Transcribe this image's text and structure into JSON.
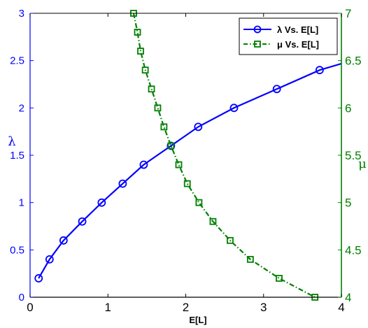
{
  "chart_data": {
    "type": "line",
    "xlabel": "E[L]",
    "ylabel_left": "λ",
    "ylabel_right": "μ",
    "xlim": [
      0,
      4
    ],
    "ylim_left": [
      0,
      3
    ],
    "ylim_right": [
      4,
      7
    ],
    "xticks": [
      "0",
      "1",
      "2",
      "3",
      "4"
    ],
    "yticks_left": [
      "0",
      "0.5",
      "1",
      "1.5",
      "2",
      "2.5",
      "3"
    ],
    "yticks_right": [
      "4",
      "4.5",
      "5",
      "5.5",
      "6",
      "6.5",
      "7"
    ],
    "legend_position": "top-right",
    "series": [
      {
        "name": "λ Vs. E[L]",
        "axis": "left",
        "color": "#0000ff",
        "marker": "circle",
        "line_style": "solid",
        "x": [
          0.11,
          0.25,
          0.43,
          0.67,
          0.92,
          1.19,
          1.46,
          1.81,
          2.16,
          2.62,
          3.17,
          3.72,
          4.13
        ],
        "y": [
          0.2,
          0.4,
          0.6,
          0.8,
          1.0,
          1.2,
          1.4,
          1.6,
          1.8,
          2.0,
          2.2,
          2.4,
          2.5
        ]
      },
      {
        "name": "μ Vs. E[L]",
        "axis": "right",
        "color": "#008000",
        "marker": "square",
        "line_style": "dash-dot",
        "x": [
          1.33,
          1.38,
          1.42,
          1.48,
          1.56,
          1.64,
          1.72,
          1.81,
          1.91,
          2.02,
          2.17,
          2.35,
          2.57,
          2.83,
          3.2,
          3.66
        ],
        "y": [
          7.0,
          6.8,
          6.6,
          6.4,
          6.2,
          6.0,
          5.8,
          5.6,
          5.4,
          5.2,
          5.0,
          4.8,
          4.6,
          4.4,
          4.2,
          4.0
        ]
      }
    ]
  }
}
